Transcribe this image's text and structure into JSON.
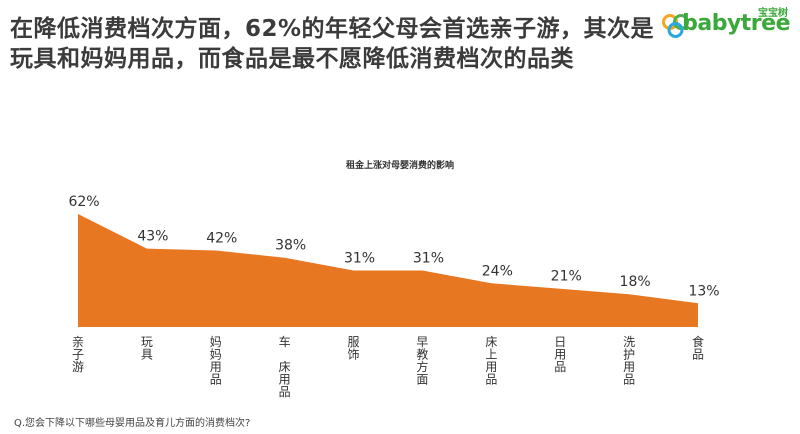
{
  "headline": "在降低消费档次方面，62%的年轻父母会首选亲子游，其次是玩具和妈妈用品，而食品是最不愿降低消费档次的品类",
  "logo": {
    "cn": "宝宝树",
    "en": "babytree"
  },
  "footnote": "Q.您会下降以下哪些母婴用品及育儿方面的消费档次?",
  "colors": {
    "area": "#E87722",
    "text": "#3a3a3a",
    "logo": "#3aa83a"
  },
  "chart_data": {
    "type": "area",
    "title": "租金上涨对母婴消费的影响",
    "categories": [
      "亲子游",
      "玩具",
      "妈妈用品",
      "车 床用品",
      "服饰",
      "早教方面",
      "床上用品",
      "日用品",
      "洗护用品",
      "食品"
    ],
    "values": [
      62,
      43,
      42,
      38,
      31,
      31,
      24,
      21,
      18,
      13
    ],
    "value_labels": [
      "62%",
      "43%",
      "42%",
      "38%",
      "31%",
      "31%",
      "24%",
      "21%",
      "18%",
      "13%"
    ],
    "category_lines": [
      [
        "亲",
        "子",
        "游"
      ],
      [
        "玩",
        "具"
      ],
      [
        "妈",
        "妈",
        "用",
        "品"
      ],
      [
        "车",
        "",
        "床",
        "用",
        "品"
      ],
      [
        "服",
        "饰"
      ],
      [
        "早",
        "教",
        "方",
        "面"
      ],
      [
        "床",
        "上",
        "用",
        "品"
      ],
      [
        "日",
        "用",
        "品"
      ],
      [
        "洗",
        "护",
        "用",
        "品"
      ],
      [
        "食",
        "品"
      ]
    ],
    "unit": "%",
    "ylim": [
      0,
      62
    ],
    "legend": "none",
    "grid": false
  }
}
